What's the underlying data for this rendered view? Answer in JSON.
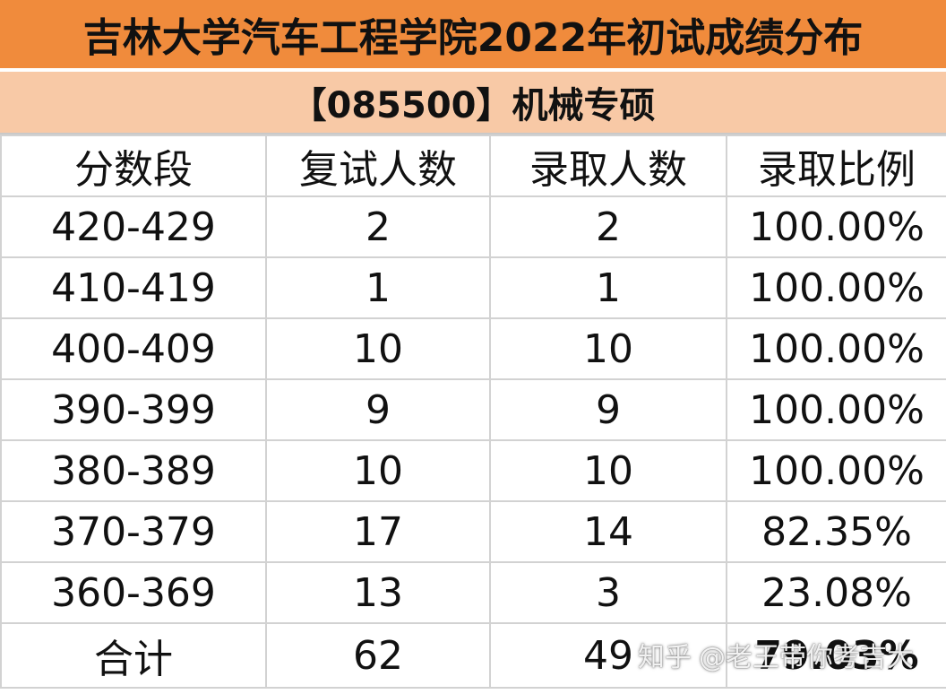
{
  "title": "吉林大学汽车工程学院2022年初试成绩分布",
  "subtitle": "【085500】机械专硕",
  "headers": [
    "分数段",
    "复试人数",
    "录取人数",
    "录取比例"
  ],
  "rows": [
    {
      "range": "420-429",
      "interviewed": "2",
      "admitted": "2",
      "ratio": "100.00%"
    },
    {
      "range": "410-419",
      "interviewed": "1",
      "admitted": "1",
      "ratio": "100.00%"
    },
    {
      "range": "400-409",
      "interviewed": "10",
      "admitted": "10",
      "ratio": "100.00%"
    },
    {
      "range": "390-399",
      "interviewed": "9",
      "admitted": "9",
      "ratio": "100.00%"
    },
    {
      "range": "380-389",
      "interviewed": "10",
      "admitted": "10",
      "ratio": "100.00%"
    },
    {
      "range": "370-379",
      "interviewed": "17",
      "admitted": "14",
      "ratio": "82.35%"
    },
    {
      "range": "360-369",
      "interviewed": "13",
      "admitted": "3",
      "ratio": "23.08%"
    }
  ],
  "total": {
    "label": "合计",
    "interviewed": "62",
    "admitted": "49",
    "ratio": "79.03%"
  },
  "watermark": {
    "brand": "知乎",
    "user": "@老王带你考吉大"
  },
  "colors": {
    "title_bg": "#f08b3c",
    "subtitle_bg": "#f8c9a6",
    "total_ratio": "#e0211b",
    "grid": "#d2d2d2"
  }
}
